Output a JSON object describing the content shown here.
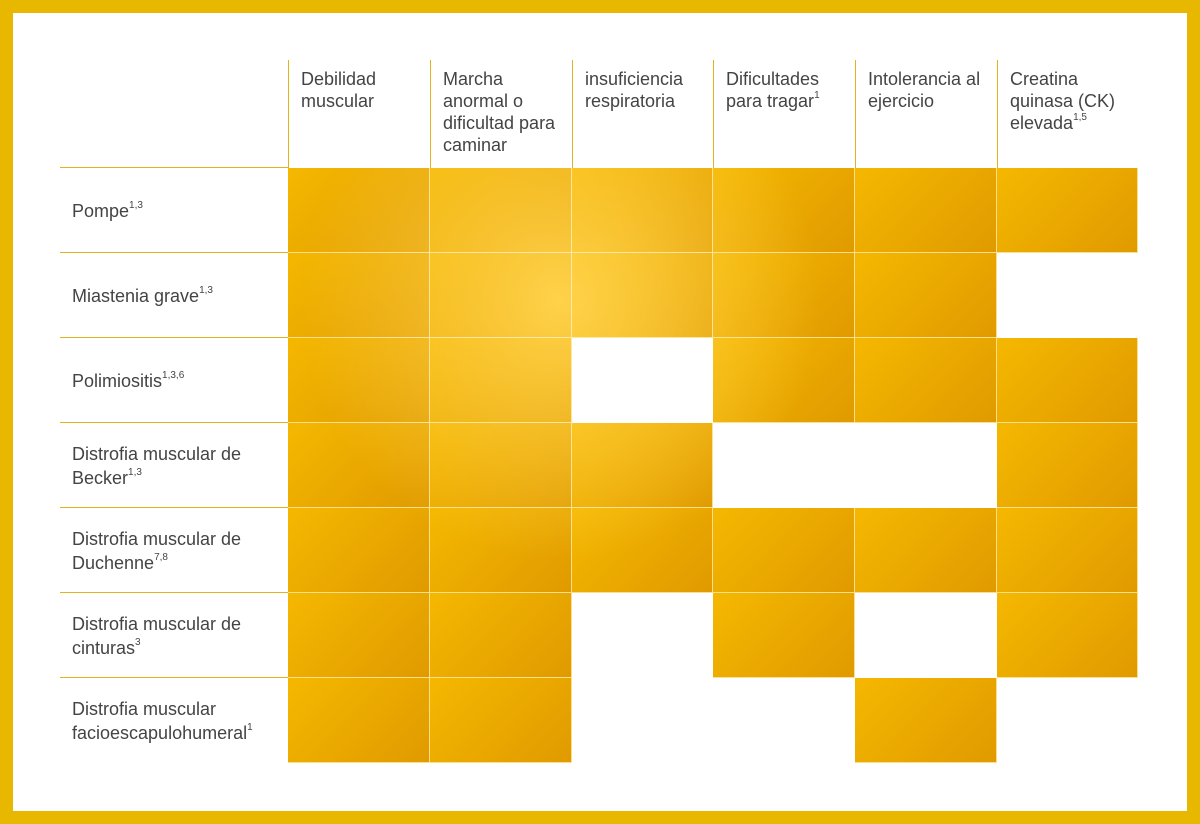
{
  "columns": [
    {
      "label": "Debilidad muscular",
      "sup": ""
    },
    {
      "label": "Marcha anormal o dificultad para caminar",
      "sup": ""
    },
    {
      "label": "insuficiencia respiratoria",
      "sup": ""
    },
    {
      "label": "Dificultades para tragar",
      "sup": "1"
    },
    {
      "label": "Intolerancia al ejercicio",
      "sup": ""
    },
    {
      "label": "Creatina quinasa (CK) elevada",
      "sup": "1,5"
    }
  ],
  "rows": [
    {
      "label": "Pompe",
      "sup": "1,3",
      "cells": [
        true,
        true,
        true,
        true,
        true,
        true
      ]
    },
    {
      "label": "Miastenia grave",
      "sup": "1,3",
      "cells": [
        true,
        true,
        true,
        true,
        true,
        false
      ]
    },
    {
      "label": "Polimiositis",
      "sup": "1,3,6",
      "cells": [
        true,
        true,
        false,
        true,
        true,
        true
      ]
    },
    {
      "label": "Distrofia muscular de Becker",
      "sup": "1,3",
      "cells": [
        true,
        true,
        true,
        false,
        false,
        true
      ]
    },
    {
      "label": "Distrofia muscular de Duchenne",
      "sup": "7,8",
      "cells": [
        true,
        true,
        true,
        true,
        true,
        true
      ]
    },
    {
      "label": "Distrofia muscular de cinturas",
      "sup": "3",
      "cells": [
        true,
        true,
        false,
        true,
        false,
        true
      ]
    },
    {
      "label": "Distrofia muscular facioescapulohumeral",
      "sup": "1",
      "cells": [
        true,
        true,
        false,
        false,
        true,
        false
      ]
    }
  ],
  "colors": {
    "frame": "#E8B800",
    "fill_base": "#F5B800",
    "fill_light": "#FFD24A",
    "fill_dark": "#E09A00",
    "grid_line": "#E3B21C",
    "text": "#444444"
  }
}
